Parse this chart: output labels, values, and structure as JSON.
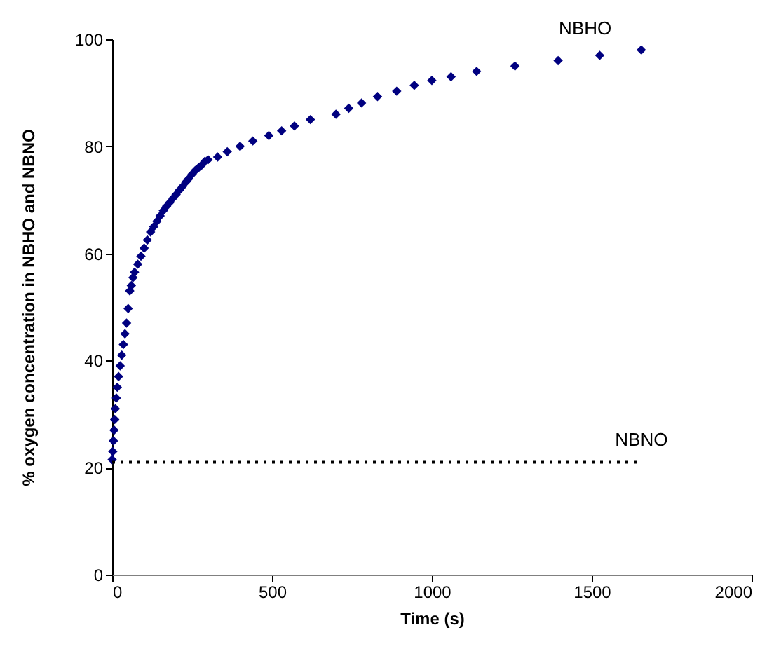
{
  "chart_data": {
    "type": "scatter",
    "xlabel": "Time (s)",
    "ylabel": "% oxygen concentration in NBHO and NBNO",
    "xlim": [
      0,
      2000
    ],
    "ylim": [
      0,
      100
    ],
    "xticks": [
      0,
      500,
      1000,
      1500,
      2000
    ],
    "yticks": [
      0,
      20,
      40,
      60,
      80,
      100
    ],
    "series": [
      {
        "name": "NBHO",
        "color": "#000080",
        "marker": "diamond",
        "x": [
          0,
          2,
          4,
          6,
          8,
          10,
          13,
          16,
          20,
          25,
          30,
          35,
          40,
          45,
          50,
          55,
          60,
          65,
          70,
          80,
          90,
          100,
          110,
          120,
          130,
          140,
          150,
          160,
          170,
          180,
          190,
          200,
          210,
          220,
          230,
          240,
          250,
          260,
          270,
          280,
          290,
          300,
          330,
          360,
          400,
          440,
          490,
          530,
          570,
          620,
          700,
          740,
          780,
          830,
          890,
          945,
          1000,
          1060,
          1140,
          1260,
          1395,
          1525,
          1655
        ],
        "values": [
          21.5,
          23,
          25,
          27,
          29,
          31,
          33,
          35,
          37,
          39,
          41,
          43,
          45,
          47,
          49.7,
          53,
          54,
          55.5,
          56.5,
          58,
          59.5,
          61,
          62.5,
          64,
          65,
          66,
          67,
          68,
          68.8,
          69.5,
          70.3,
          71,
          71.8,
          72.5,
          73.3,
          74,
          74.8,
          75.5,
          76,
          76.5,
          77.2,
          77.5,
          78,
          79,
          80,
          81,
          82,
          82.9,
          83.8,
          85,
          86,
          87.1,
          88.1,
          89.3,
          90.3,
          91.4,
          92.3,
          93,
          94,
          95,
          96,
          97,
          98
        ]
      },
      {
        "name": "NBNO",
        "color": "#000000",
        "type": "line",
        "line_style": "dotted",
        "marker": "none",
        "x": [
          0,
          1650
        ],
        "values": [
          21,
          21
        ]
      }
    ]
  }
}
